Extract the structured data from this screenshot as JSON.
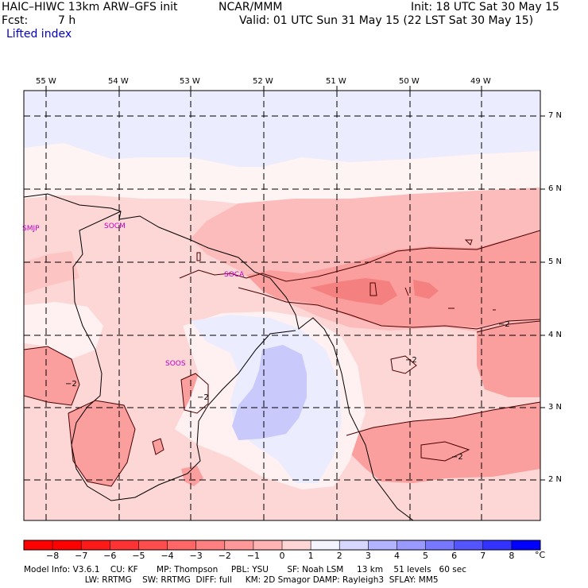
{
  "header": {
    "model": "HAIC–HIWC 13km ARW–GFS init",
    "org": "NCAR/MMM",
    "init": "Init: 18 UTC Sat 30 May 15",
    "fcst_label": "Fcst:",
    "fcst_value": "7 h",
    "valid": "Valid: 01 UTC Sun 31 May 15 (22 LST Sat 30 May 15)",
    "field": "Lifted index"
  },
  "map": {
    "lon_labels": [
      "55 W",
      "54 W",
      "53 W",
      "52 W",
      "51 W",
      "50 W",
      "49 W"
    ],
    "lat_labels": [
      "7 N",
      "6 N",
      "5 N",
      "4 N",
      "3 N",
      "2 N"
    ],
    "stations": [
      "SMJP",
      "SOCM",
      "SOCA",
      "SOOS"
    ],
    "contour_labels": [
      "−2",
      "−2",
      "−2",
      "−2",
      "−2"
    ]
  },
  "colorbar": {
    "ticks": [
      "−8",
      "−7",
      "−6",
      "−5",
      "−4",
      "−3",
      "−2",
      "−1",
      "0",
      "1",
      "2",
      "3",
      "4",
      "5",
      "6",
      "7",
      "8"
    ],
    "unit": "°C",
    "colors": [
      "#ff0000",
      "#ff1a1a",
      "#ff3333",
      "#ff4d4d",
      "#ff6666",
      "#ff8080",
      "#ff9999",
      "#ffb3b3",
      "#ffd6d6",
      "#f4f4ff",
      "#d6d6ff",
      "#b3b3ff",
      "#9999ff",
      "#7777ff",
      "#5555ff",
      "#3333ff",
      "#0000ff"
    ]
  },
  "footer": {
    "line1": "Model Info: V3.6.1    CU: KF       MP: Thompson     PBL: YSU       SF: Noah LSM     13 km    51 levels   60 sec",
    "line2": "                       LW: RRTMG    SW: RRTMG  DIFF: full     KM: 2D Smagor DAMP: Rayleigh3  SFLAY: MM5"
  }
}
